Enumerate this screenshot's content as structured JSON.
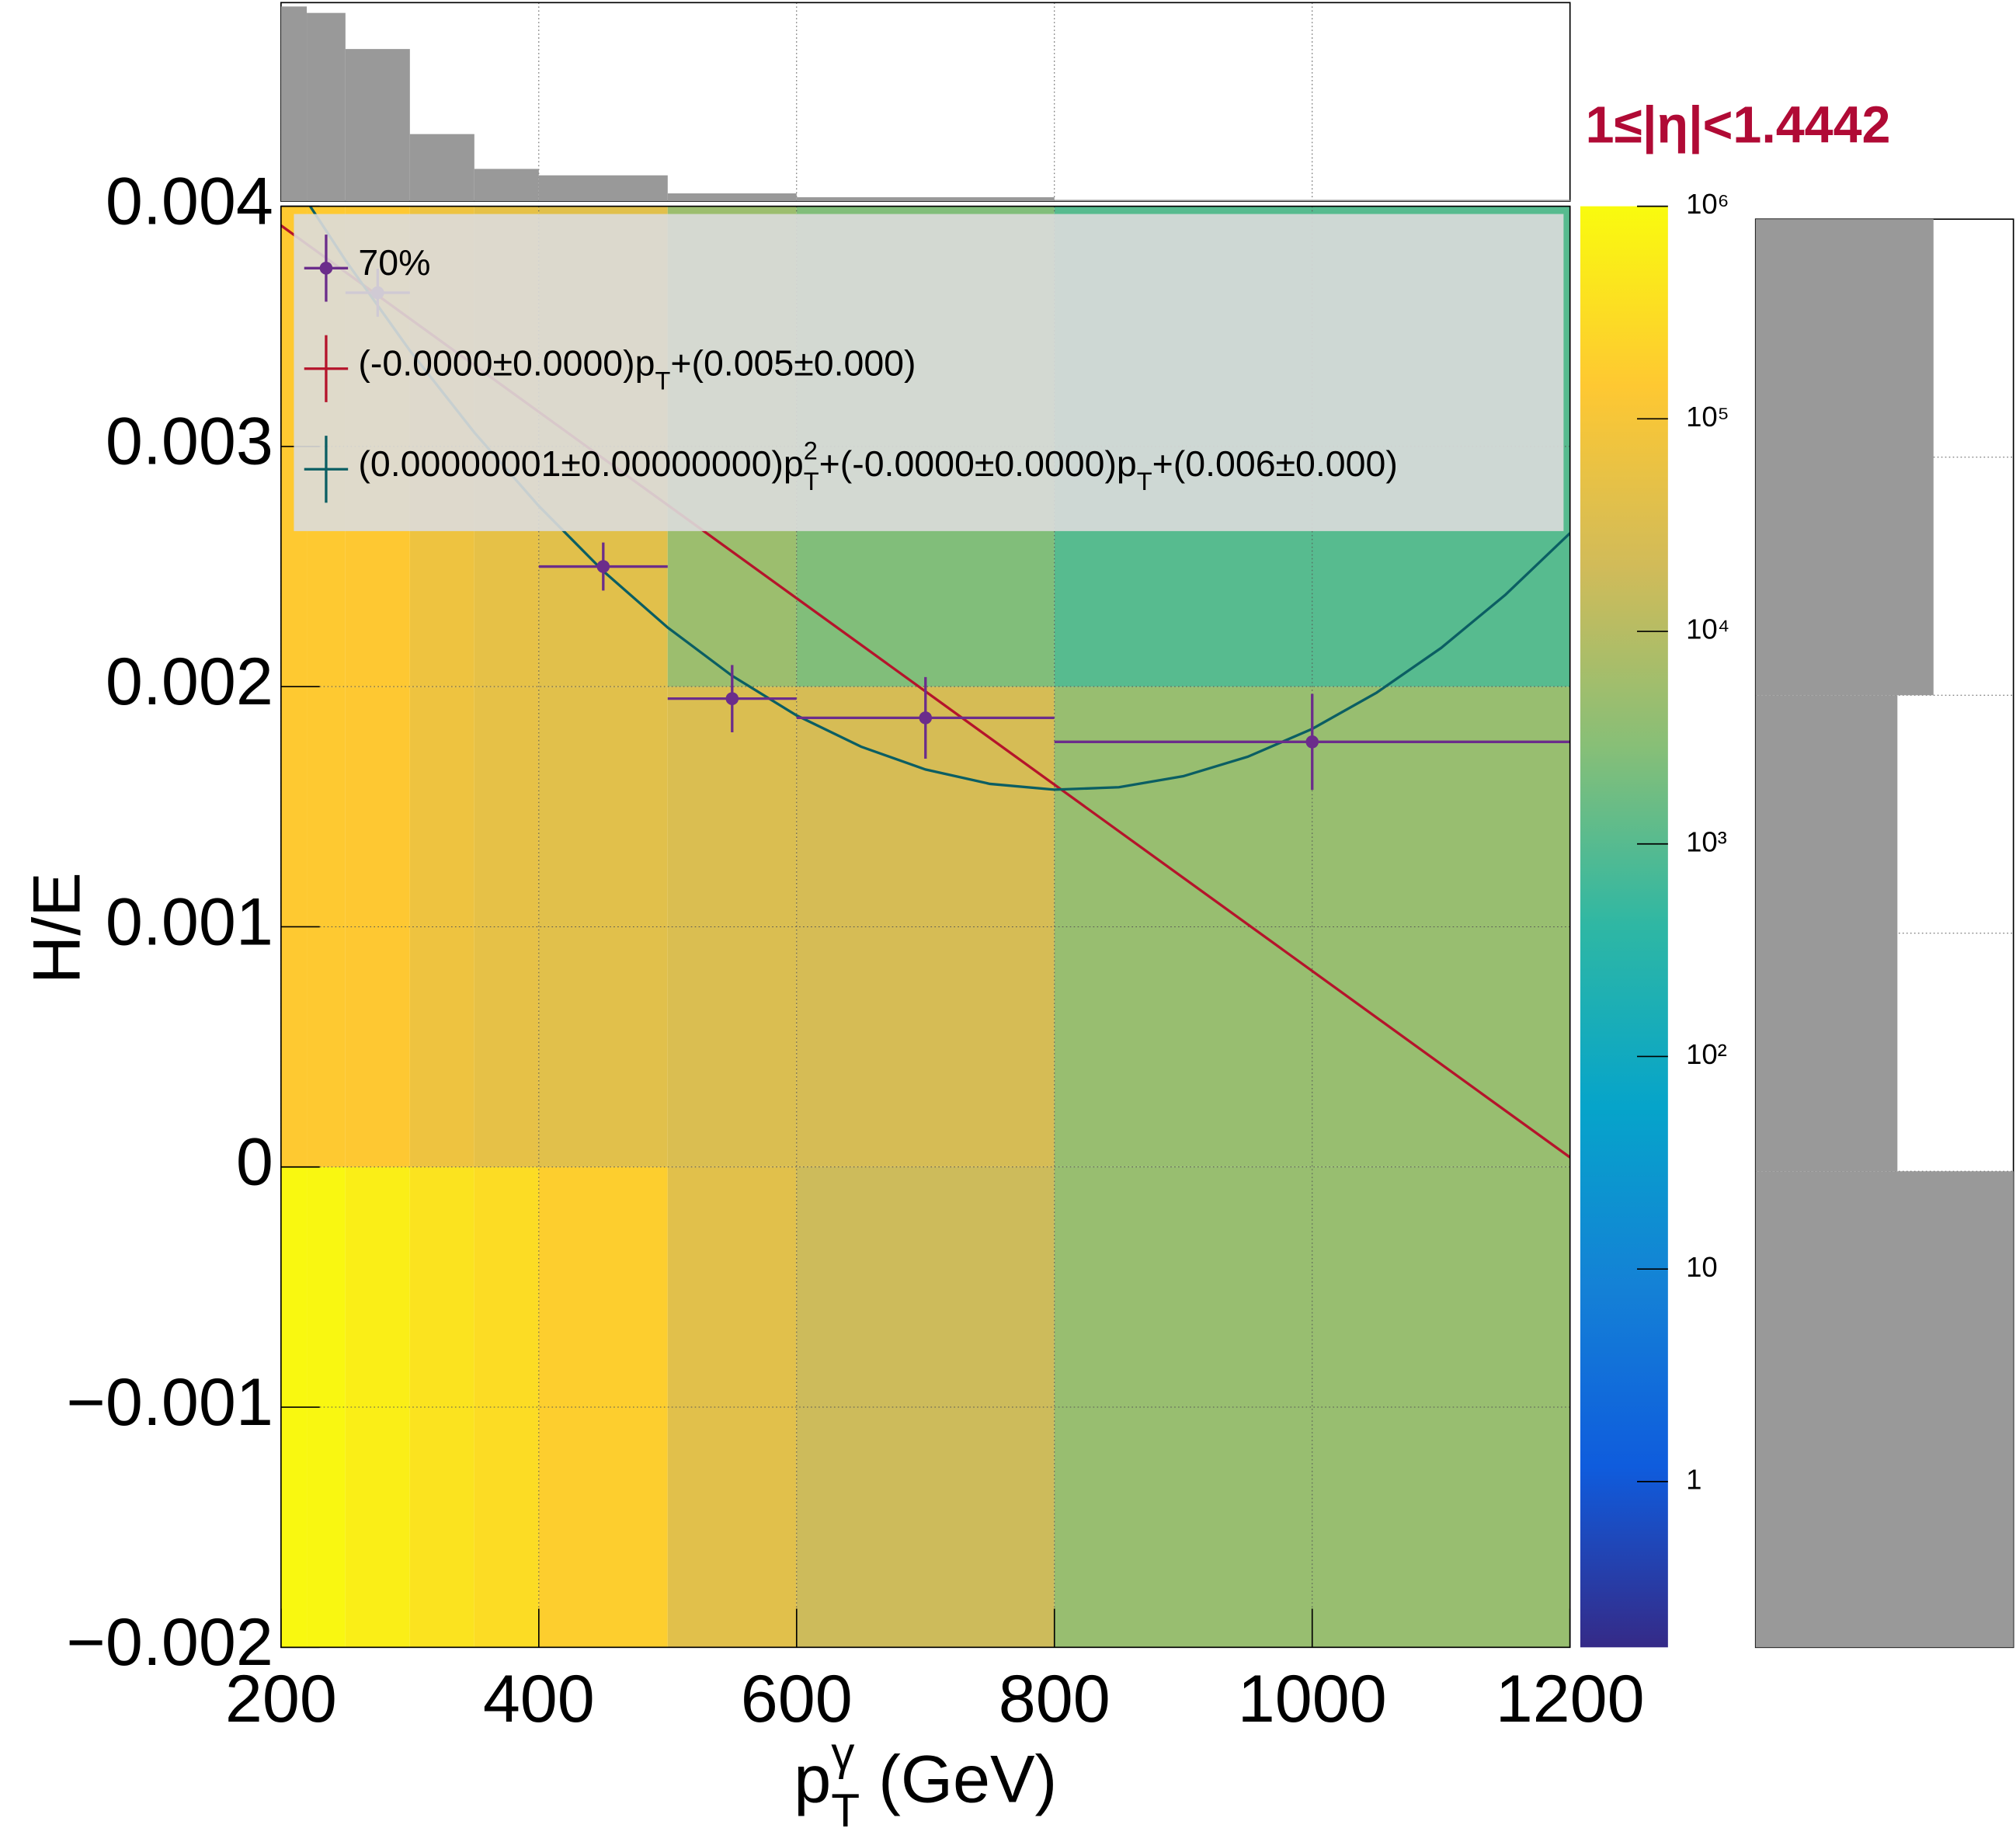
{
  "chart_data": {
    "type": "heatmap",
    "x_label": [
      {
        "text": "p"
      },
      {
        "sup": "γ"
      },
      {
        "sub": "T"
      },
      {
        "text": " (GeV)"
      }
    ],
    "y_label": "H/E",
    "annotation": "1≤|η|<1.4442",
    "xlim": [
      200,
      1200
    ],
    "xticks": [
      200,
      400,
      600,
      800,
      1000,
      1200
    ],
    "ylim": [
      -0.002,
      0.004
    ],
    "yticks": [
      {
        "value": -0.002,
        "label": "−0.002"
      },
      {
        "value": -0.001,
        "label": "−0.001"
      },
      0,
      0.001,
      0.002,
      0.003,
      0.004
    ],
    "grid": true,
    "legend": "top",
    "xbins": [
      200,
      220,
      250,
      300,
      350,
      400,
      500,
      600,
      800,
      1200
    ],
    "ybins": [
      -0.002,
      0,
      0.002,
      0.004
    ],
    "z": [
      [
        900000,
        850000,
        600000,
        400000,
        300000,
        180000,
        40000,
        18000,
        4500
      ],
      [
        150000,
        150000,
        140000,
        70000,
        50000,
        40000,
        30000,
        25000,
        4500
      ],
      [
        150000,
        150000,
        140000,
        70000,
        50000,
        40000,
        5000,
        2500,
        1000
      ]
    ],
    "zlog": true,
    "zlim": [
      0.166,
      1000000
    ],
    "zticks": [
      1,
      10,
      {
        "value": 100,
        "label": "10²"
      },
      {
        "value": 1000,
        "label": "10³"
      },
      {
        "value": 10000,
        "label": "10⁴"
      },
      {
        "value": 100000,
        "label": "10⁵"
      },
      {
        "value": 1000000,
        "label": "10⁶"
      }
    ],
    "palette": [
      "#352a87",
      "#0f5cdd",
      "#1481d6",
      "#06a4ca",
      "#2eb7a4",
      "#87bf77",
      "#d1bb59",
      "#fec832",
      "#f9fb0e"
    ],
    "series": [
      {
        "name": [
          {
            "text": "70%"
          }
        ],
        "type": "profile",
        "color": "#6b2d8b",
        "x": [
          275,
          450,
          550,
          700,
          1000
        ],
        "values": [
          0.00364,
          0.0025,
          0.00195,
          0.00187,
          0.00177
        ],
        "xerr": [
          25,
          50,
          50,
          100,
          200
        ],
        "yerr": [
          0.0001,
          0.0001,
          0.00014,
          0.00017,
          0.0002
        ]
      },
      {
        "name": [
          {
            "text": "(-0.0000±0.0000)p"
          },
          {
            "sub": "T"
          },
          {
            "text": "+(0.005±0.000)"
          }
        ],
        "type": "line",
        "color": "#b5142b",
        "x": [
          200,
          1200
        ],
        "values": [
          0.00392,
          4e-05
        ]
      },
      {
        "name": [
          {
            "text": "(0.00000001±0.00000000)p"
          },
          {
            "sup": "2"
          },
          {
            "sub": "T"
          },
          {
            "text": "+(-0.0000±0.0000)p"
          },
          {
            "sub": "T"
          },
          {
            "text": "+(0.006±0.000)"
          }
        ],
        "type": "line",
        "color": "#0b5e63",
        "x": [
          200,
          250,
          300,
          350,
          400,
          450,
          500,
          550,
          600,
          650,
          700,
          750,
          800,
          850,
          900,
          950,
          1000,
          1050,
          1100,
          1150,
          1200
        ],
        "values": [
          0.004186,
          0.003775,
          0.003399,
          0.003058,
          0.002752,
          0.002481,
          0.002246,
          0.002045,
          0.00188,
          0.00175,
          0.001655,
          0.001595,
          0.001571,
          0.001581,
          0.001627,
          0.001708,
          0.001824,
          0.001975,
          0.002161,
          0.002383,
          0.002639
        ]
      }
    ],
    "x_projection": {
      "color": "#999999",
      "ylim": [
        0,
        154
      ],
      "values": [
        151,
        146,
        118,
        52,
        25,
        20,
        6,
        3,
        1
      ]
    },
    "y_projection": {
      "color": "#999999",
      "xlim": [
        0,
        200
      ],
      "values": [
        200,
        110,
        138
      ]
    }
  }
}
